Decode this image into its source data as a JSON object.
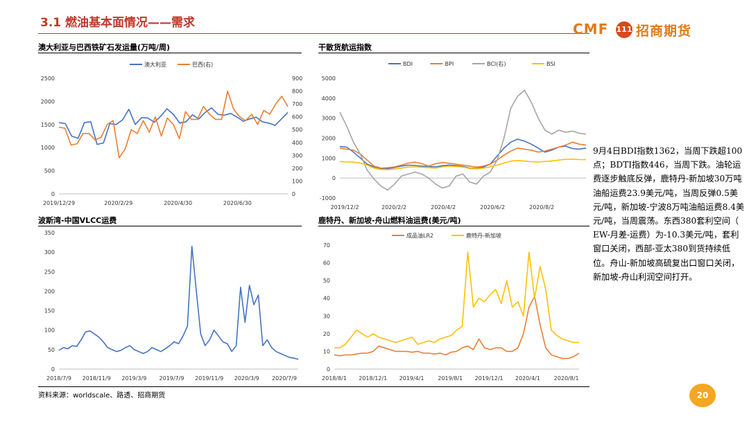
{
  "header": {
    "title": "3.1 燃油基本面情况——需求"
  },
  "logo": {
    "brand": "CMF",
    "badge": "111",
    "name": "招商期货"
  },
  "commentary": "9月4日BDI指数1362，当周下跌超100点；BDTI指数446，当周下跌。油轮运费逐步触底反弹，鹿特丹-新加坡30万吨油船运费23.9美元/吨，当周反弹0.5美元/吨，新加坡-宁波8万吨油船运费8.4美元/吨，当周震荡。东西380套利空间（ EW-月差-运费）为-10.3美元/吨，套利窗口关闭，西部-亚太380到货持续低位。舟山-新加坡高硫复出口窗口关闭，新加坡-舟山利润空间打开。",
  "footer": {
    "source": "资料来源：worldscale、路透、招商期货",
    "page": "20"
  },
  "colors": {
    "title_red": "#c0392b",
    "blue": "#4472c4",
    "orange": "#ed7d31",
    "gray": "#a5a5a5",
    "yellow": "#ffc000",
    "logo_orange": "#e07b1a"
  },
  "chart_data": [
    {
      "title": "澳大利亚与巴西铁矿石发运量(万吨/周)",
      "type": "line",
      "x_ticks": [
        "2019/12/29",
        "2020/2/29",
        "2020/4/30",
        "2020/6/30"
      ],
      "y_left": {
        "range": [
          0,
          2500
        ],
        "ticks": [
          "0",
          "500",
          "1000",
          "1500",
          "2000",
          "2500"
        ]
      },
      "y_right": {
        "range": [
          0,
          900
        ],
        "ticks": [
          "0",
          "100",
          "200",
          "300",
          "400",
          "500",
          "600",
          "700",
          "800",
          "900"
        ]
      },
      "legend": "top",
      "series": [
        {
          "name": "澳大利亚",
          "axis": "left",
          "color": "#4472c4",
          "values": [
            1540,
            1520,
            1250,
            1200,
            1540,
            1560,
            1070,
            1100,
            1520,
            1500,
            1600,
            1830,
            1500,
            1650,
            1640,
            1550,
            1680,
            1840,
            1720,
            1530,
            1560,
            1710,
            1620,
            1760,
            1860,
            1720,
            1700,
            1740,
            1660,
            1570,
            1620,
            1660,
            1560,
            1530,
            1480,
            1620,
            1760
          ]
        },
        {
          "name": "巴西(右)",
          "axis": "right",
          "color": "#ed7d31",
          "values": [
            520,
            510,
            380,
            390,
            470,
            470,
            420,
            440,
            540,
            570,
            280,
            350,
            500,
            470,
            570,
            480,
            600,
            450,
            590,
            540,
            430,
            640,
            580,
            580,
            680,
            620,
            580,
            580,
            800,
            660,
            600,
            570,
            620,
            540,
            650,
            620,
            700,
            760,
            680
          ]
        }
      ]
    },
    {
      "title": "干散货航运指数",
      "type": "line",
      "x_ticks": [
        "2019/12/2",
        "2020/2/2",
        "2020/4/2",
        "2020/6/2",
        "2020/8/2"
      ],
      "y_range": [
        -1000,
        5000
      ],
      "y_ticks": [
        "-1000",
        "0",
        "1000",
        "2000",
        "3000",
        "4000",
        "5000"
      ],
      "legend": "top",
      "series": [
        {
          "name": "BDI",
          "color": "#4472c4",
          "values": [
            1580,
            1550,
            1300,
            1000,
            700,
            560,
            480,
            470,
            530,
            600,
            650,
            630,
            600,
            580,
            560,
            620,
            650,
            630,
            580,
            500,
            480,
            550,
            700,
            1100,
            1500,
            1800,
            1950,
            1850,
            1700,
            1500,
            1300,
            1400,
            1550,
            1600,
            1480,
            1450,
            1500
          ]
        },
        {
          "name": "BPI",
          "color": "#ed7d31",
          "values": [
            1500,
            1450,
            1400,
            1200,
            900,
            600,
            500,
            520,
            560,
            650,
            750,
            800,
            720,
            600,
            720,
            780,
            740,
            700,
            650,
            600,
            550,
            600,
            700,
            900,
            1150,
            1350,
            1500,
            1450,
            1400,
            1300,
            1350,
            1450,
            1550,
            1650,
            1800,
            1700,
            1650
          ]
        },
        {
          "name": "BCI(右)",
          "color": "#a5a5a5",
          "values": [
            3300,
            2600,
            1800,
            1200,
            400,
            -50,
            -400,
            -600,
            -300,
            100,
            200,
            300,
            200,
            0,
            -300,
            -500,
            -400,
            100,
            200,
            -200,
            -300,
            100,
            300,
            900,
            2000,
            3500,
            4100,
            4400,
            3800,
            3000,
            2400,
            2200,
            2400,
            2300,
            2350,
            2250,
            2200
          ]
        },
        {
          "name": "BSI",
          "color": "#ffc000",
          "values": [
            830,
            810,
            800,
            750,
            650,
            500,
            430,
            420,
            450,
            500,
            550,
            560,
            540,
            520,
            500,
            560,
            600,
            580,
            550,
            480,
            460,
            500,
            560,
            650,
            750,
            850,
            880,
            850,
            820,
            800,
            830,
            860,
            900,
            940,
            950,
            930,
            920
          ]
        }
      ]
    },
    {
      "title": "波斯湾-中国VLCC运费",
      "type": "line",
      "x_ticks": [
        "2018/7/9",
        "2018/11/9",
        "2019/3/9",
        "2019/7/9",
        "2019/11/9",
        "2020/3/9",
        "2020/7/9"
      ],
      "y_range": [
        0,
        350
      ],
      "y_ticks": [
        "0",
        "50",
        "100",
        "150",
        "200",
        "250",
        "300",
        "350"
      ],
      "series": [
        {
          "name": "",
          "color": "#4472c4",
          "values": [
            48,
            55,
            52,
            60,
            58,
            75,
            95,
            98,
            90,
            82,
            70,
            55,
            50,
            45,
            48,
            55,
            60,
            50,
            45,
            40,
            45,
            55,
            50,
            45,
            52,
            60,
            70,
            65,
            85,
            110,
            315,
            200,
            90,
            60,
            75,
            100,
            85,
            70,
            65,
            45,
            60,
            210,
            120,
            215,
            165,
            190,
            60,
            75,
            55,
            45,
            40,
            35,
            30,
            28,
            25
          ]
        }
      ]
    },
    {
      "title": "鹿特丹、新加坡-舟山燃料油运费(美元/吨)",
      "type": "line",
      "x_ticks": [
        "2018/8/1",
        "2018/12/1",
        "2019/4/1",
        "2019/8/1",
        "2019/12/1",
        "2020/4/1",
        "2020/8/1"
      ],
      "y_range": [
        0,
        70
      ],
      "y_ticks": [
        "0",
        "10",
        "20",
        "30",
        "40",
        "50",
        "60",
        "70"
      ],
      "legend": "top",
      "series": [
        {
          "name": "成品油LR2",
          "color": "#ed7d31",
          "values": [
            8,
            7.5,
            8,
            8,
            8.5,
            9,
            9,
            10,
            13,
            12,
            11,
            10,
            10,
            10,
            9.5,
            10,
            9,
            9,
            8.5,
            9,
            8,
            9.5,
            10,
            12,
            13,
            11,
            17,
            12,
            11,
            12,
            12,
            10,
            10,
            12,
            20,
            35,
            41,
            25,
            12,
            8,
            7,
            6,
            6,
            7,
            9
          ]
        },
        {
          "name": "鹿特丹-新加坡",
          "color": "#ffc000",
          "values": [
            12,
            12,
            14,
            18,
            22,
            20,
            18,
            20,
            18,
            17,
            16,
            15,
            16,
            17,
            18,
            14,
            15,
            16,
            15,
            17,
            18,
            19,
            22,
            24,
            66,
            35,
            40,
            38,
            42,
            45,
            37,
            50,
            35,
            38,
            30,
            66,
            40,
            58,
            45,
            22,
            19,
            17,
            16,
            15,
            15
          ]
        }
      ]
    }
  ]
}
